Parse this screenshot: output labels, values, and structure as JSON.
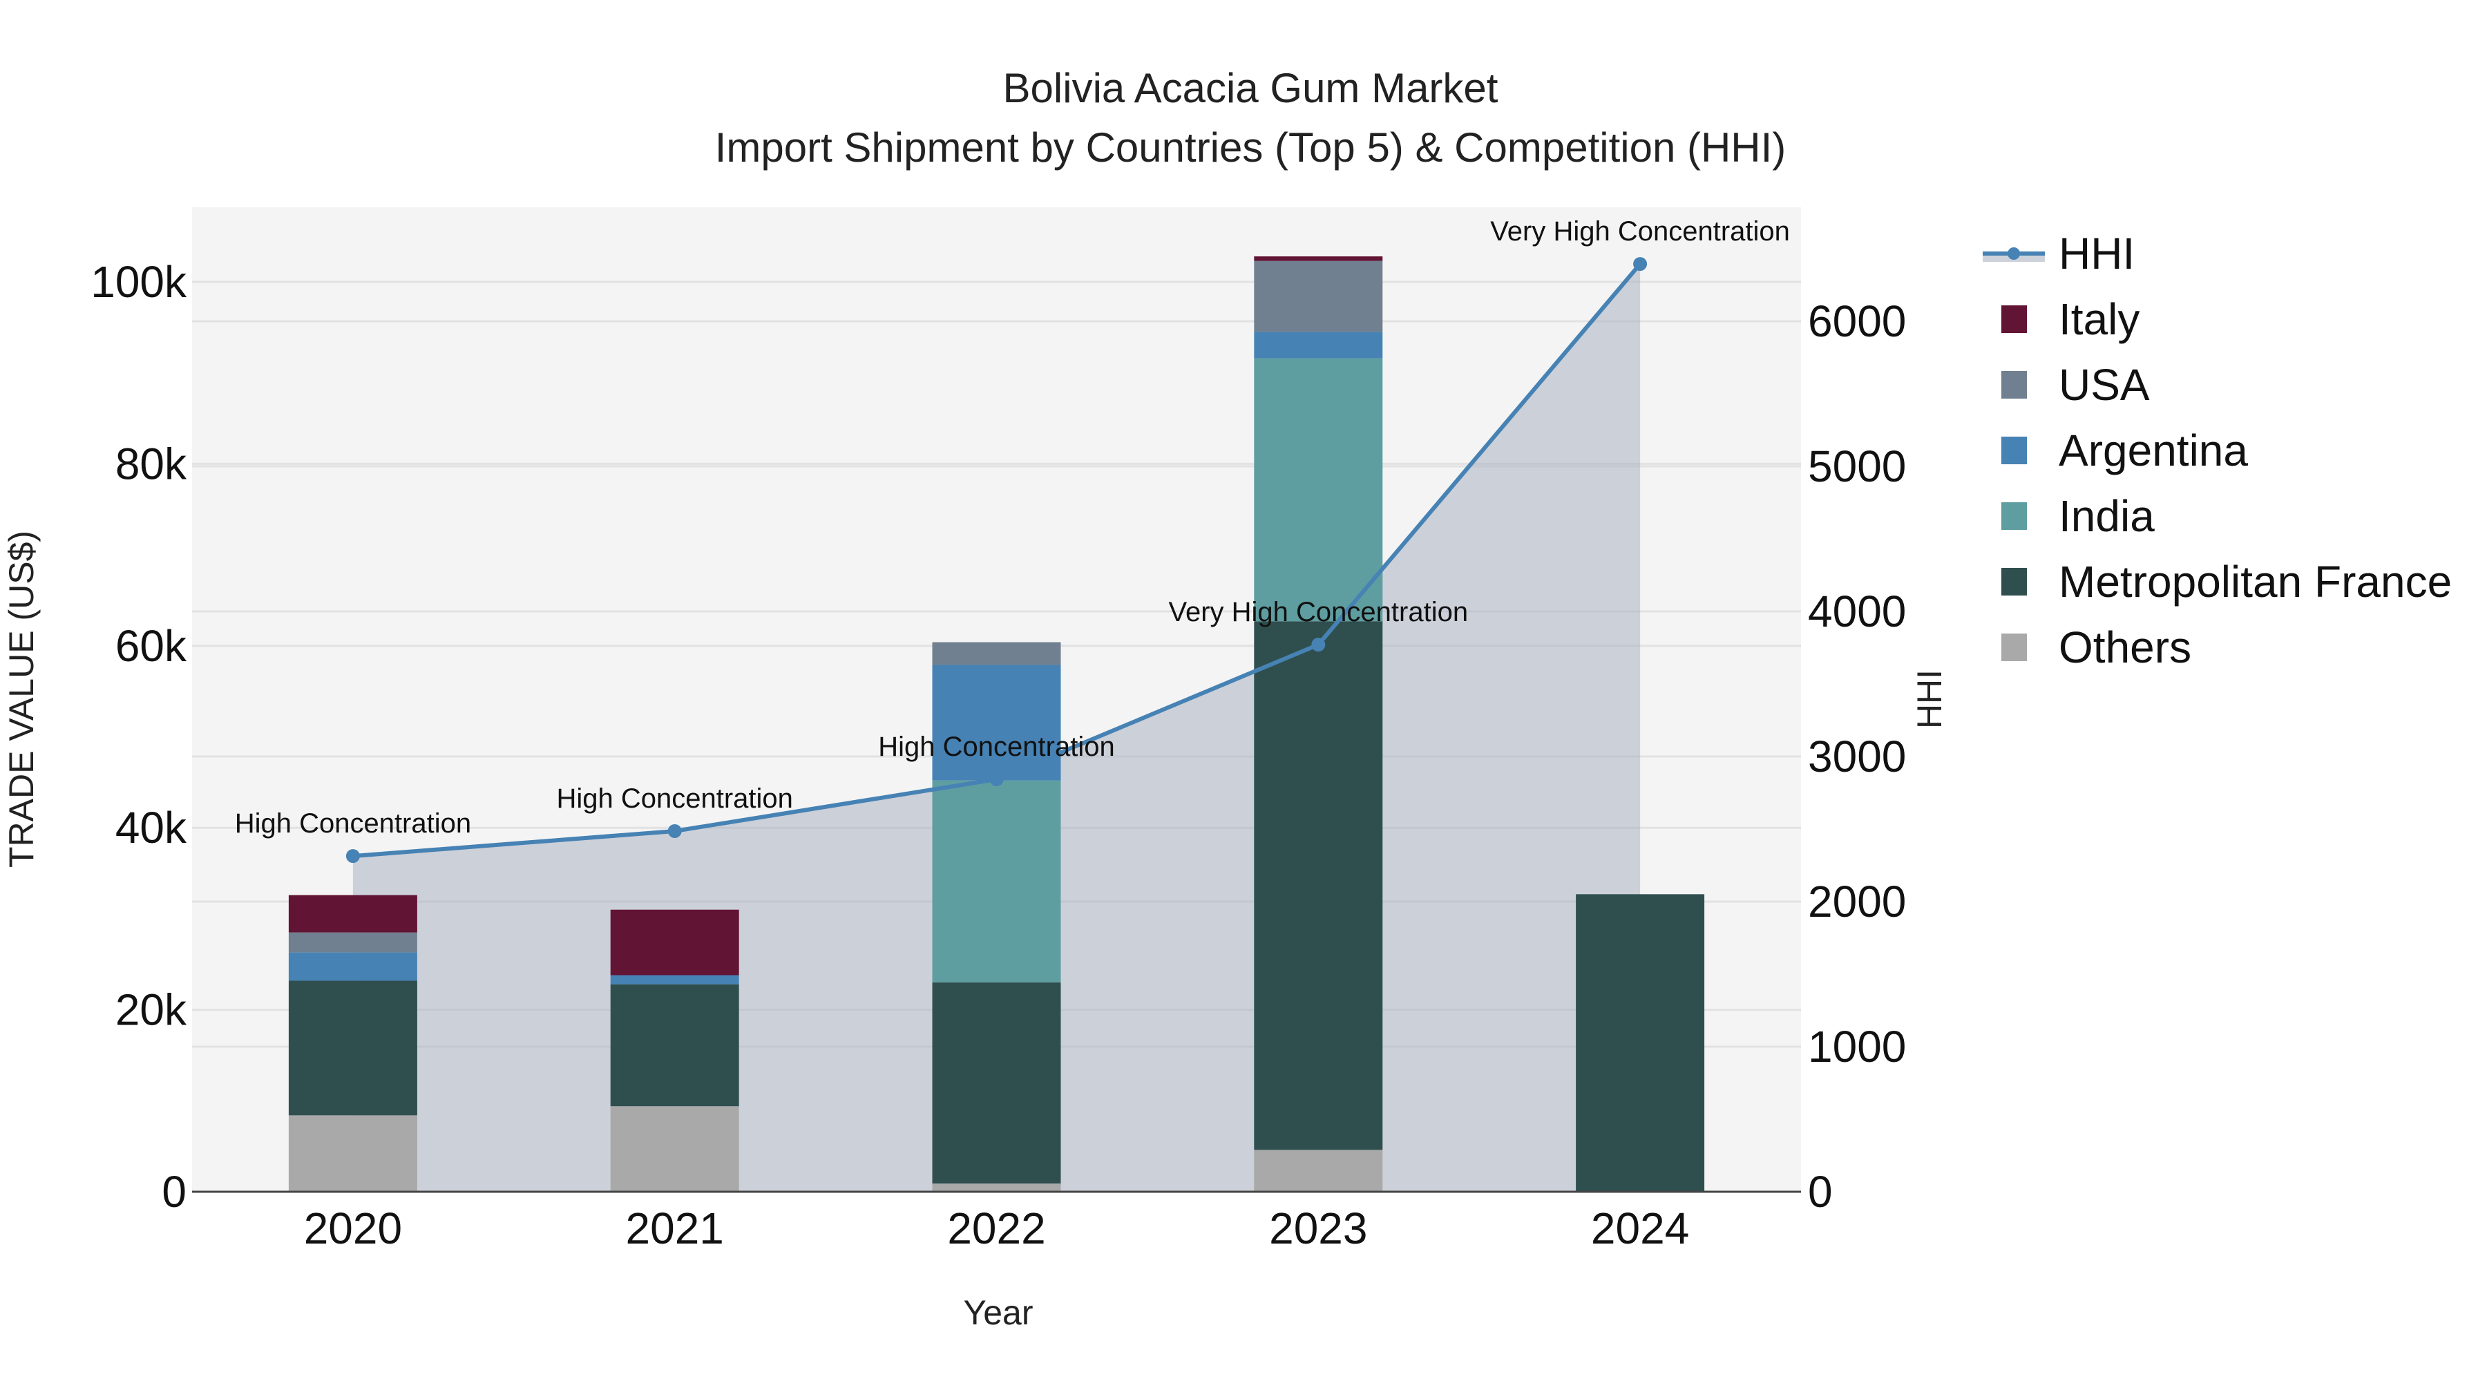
{
  "chart_data": {
    "type": "bar",
    "subtype": "stacked bar + line (secondary axis) with filled area",
    "title": "Bolivia Acacia Gum Market",
    "subtitle": "Import Shipment by Countries (Top 5) & Competition (HHI)",
    "xlabel": "Year",
    "ylabel": "TRADE VALUE (US$)",
    "y2label": "HHI",
    "categories": [
      "2020",
      "2021",
      "2022",
      "2023",
      "2024"
    ],
    "ylim": [
      0,
      108200
    ],
    "y2lim": [
      0,
      6786
    ],
    "yticks": [
      0,
      20000,
      40000,
      60000,
      80000,
      100000
    ],
    "ytick_labels": [
      "0",
      "20k",
      "40k",
      "60k",
      "80k",
      "100k"
    ],
    "y2ticks": [
      0,
      1000,
      2000,
      3000,
      4000,
      5000,
      6000
    ],
    "y2tick_labels": [
      "0",
      "1000",
      "2000",
      "3000",
      "4000",
      "5000",
      "6000"
    ],
    "grid": true,
    "legend_position": "right",
    "series": [
      {
        "name": "Others",
        "color": "#A9A9A9",
        "values": [
          8400,
          9400,
          900,
          4600,
          0
        ]
      },
      {
        "name": "Metropolitan France",
        "color": "#2F4F4F",
        "values": [
          14800,
          13400,
          22100,
          58100,
          32700
        ]
      },
      {
        "name": "India",
        "color": "#5F9EA0",
        "values": [
          0,
          0,
          22200,
          28900,
          0
        ]
      },
      {
        "name": "Argentina",
        "color": "#4682B4",
        "values": [
          3100,
          1000,
          12700,
          2900,
          0
        ]
      },
      {
        "name": "USA",
        "color": "#708090",
        "values": [
          2200,
          0,
          2500,
          7800,
          0
        ]
      },
      {
        "name": "Italy",
        "color": "#621434",
        "values": [
          4100,
          7200,
          0,
          500,
          0
        ]
      }
    ],
    "line_series": {
      "name": "HHI",
      "axis": "y2",
      "color": "#4682B4",
      "fill_color": "#B0B7C6",
      "values": [
        2314,
        2486,
        2843,
        3771,
        6395
      ],
      "annotations": [
        "High Concentration",
        "High Concentration",
        "High Concentration",
        "Very High Concentration",
        "Very High Concentration"
      ]
    }
  },
  "legend": {
    "items": [
      {
        "label": "HHI",
        "type": "line",
        "color": "#4682B4"
      },
      {
        "label": "Italy",
        "type": "box",
        "color": "#621434"
      },
      {
        "label": "USA",
        "type": "box",
        "color": "#708090"
      },
      {
        "label": "Argentina",
        "type": "box",
        "color": "#4682B4"
      },
      {
        "label": "India",
        "type": "box",
        "color": "#5F9EA0"
      },
      {
        "label": "Metropolitan France",
        "type": "box",
        "color": "#2F4F4F"
      },
      {
        "label": "Others",
        "type": "box",
        "color": "#A9A9A9"
      }
    ]
  },
  "colors": {
    "plot_bg": "#F4F4F4",
    "grid": "#E2E2E2",
    "axis_line": "#444444"
  }
}
